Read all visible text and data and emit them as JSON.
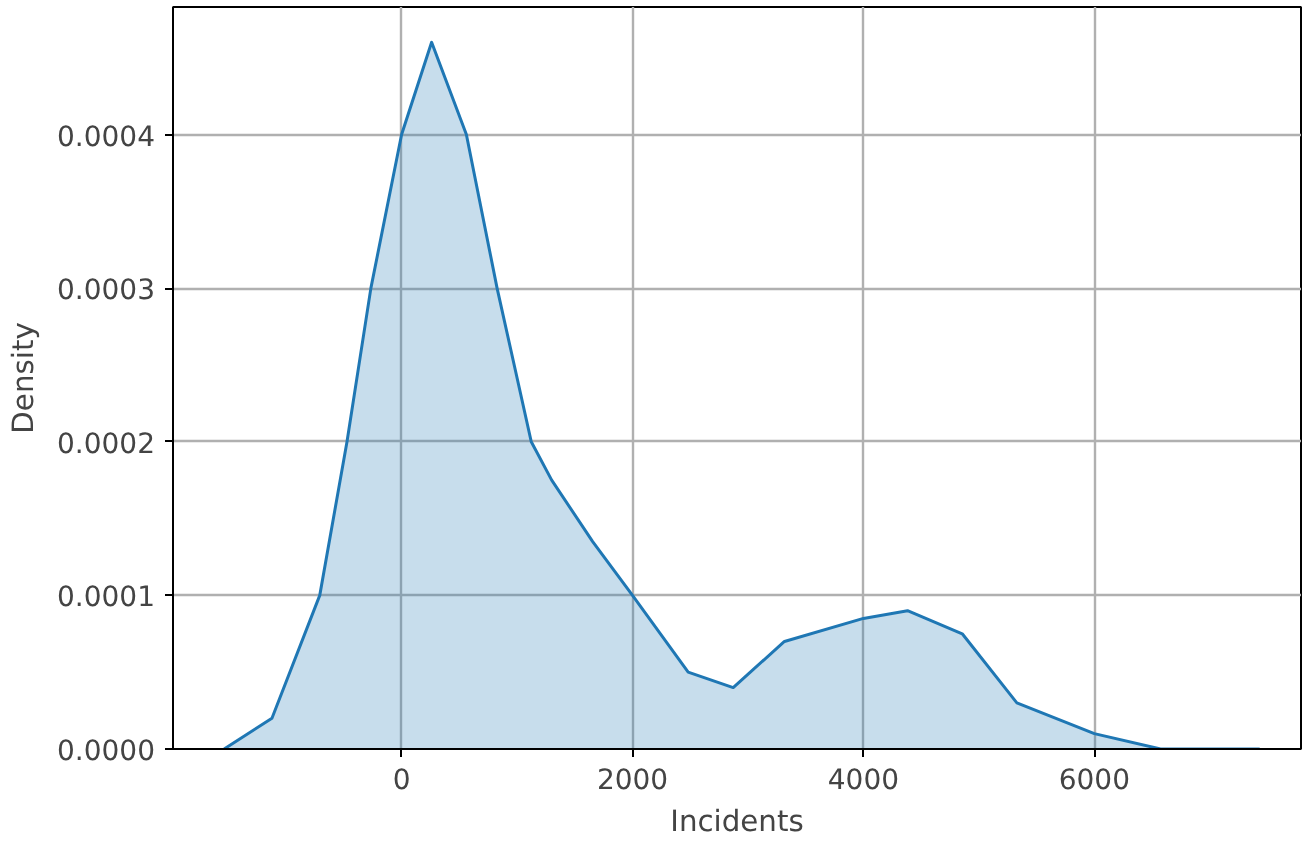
{
  "chart_data": {
    "type": "area",
    "xlabel": "Incidents",
    "ylabel": "Density",
    "x": [
      -1537,
      -1123,
      -709,
      -473,
      -266,
      0,
      260,
      561,
      827,
      1123,
      1300,
      1655,
      2000,
      2482,
      2872,
      3316,
      4000,
      4382,
      4856,
      5329,
      6000,
      6574,
      7432
    ],
    "series": [
      {
        "color": "#1f77b4",
        "values": [
          0,
          2e-05,
          0.0001,
          0.0002,
          0.0003,
          0.0004,
          0.00046,
          0.0004,
          0.0003,
          0.0002,
          0.000175,
          0.000135,
          0.0001,
          5e-05,
          4e-05,
          7e-05,
          8.5e-05,
          9e-05,
          7.5e-05,
          3e-05,
          1e-05,
          0,
          0
        ]
      }
    ],
    "xlim": [
      -1980,
      7790
    ],
    "ylim": [
      0,
      0.000483
    ],
    "xticks": [
      0,
      2000,
      4000,
      6000
    ],
    "yticks": [
      {
        "value": 0,
        "label": "0.0000"
      },
      {
        "value": 0.0001,
        "label": "0.0001"
      },
      {
        "value": 0.0002,
        "label": "0.0002"
      },
      {
        "value": 0.0003,
        "label": "0.0003"
      },
      {
        "value": 0.0004,
        "label": "0.0004"
      }
    ],
    "grid": true
  }
}
